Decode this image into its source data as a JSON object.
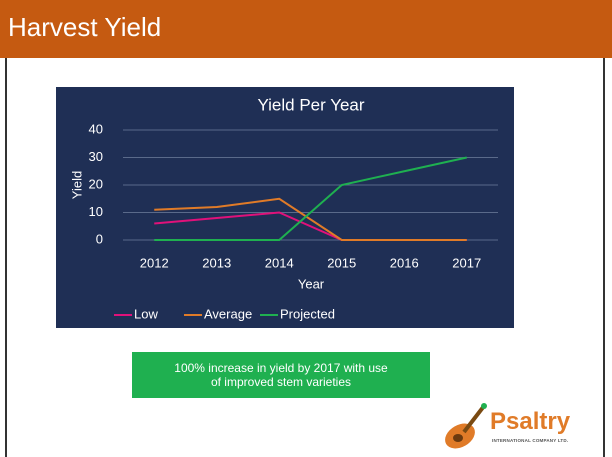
{
  "header": {
    "title": "Harvest Yield"
  },
  "chart_data": {
    "type": "line",
    "title": "Yield Per Year",
    "x_label": "Year",
    "y_label": "Yield",
    "categories": [
      "2012",
      "2013",
      "2014",
      "2015",
      "2016",
      "2017"
    ],
    "series": [
      {
        "name": "Low",
        "color": "#e0117a",
        "values": [
          6,
          8,
          10,
          0,
          0,
          0
        ]
      },
      {
        "name": "Average",
        "color": "#e07b28",
        "values": [
          11,
          12,
          15,
          0,
          0,
          0
        ]
      },
      {
        "name": "Projected",
        "color": "#1fb050",
        "values": [
          0,
          0,
          0,
          20,
          25,
          30
        ]
      }
    ],
    "ylim": [
      0,
      40
    ],
    "yticks": [
      0,
      10,
      20,
      30,
      40
    ],
    "grid": true,
    "legend": "bottom"
  },
  "note": {
    "lines": [
      "100% increase in yield by 2017 with use",
      "of  improved stem varieties"
    ]
  },
  "logo": {
    "name": "Psaltry",
    "subtitle": "INTERNATIONAL COMPANY LTD."
  }
}
